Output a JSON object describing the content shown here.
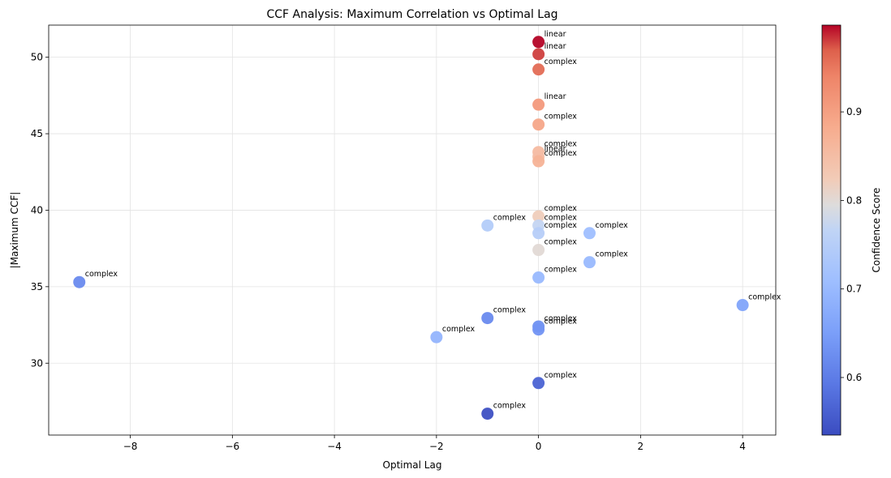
{
  "chart_data": {
    "type": "scatter",
    "title": "CCF Analysis: Maximum Correlation vs Optimal Lag",
    "xlabel": "Optimal Lag",
    "ylabel": "|Maximum CCF|",
    "xlim": [
      -9.6,
      4.65
    ],
    "ylim": [
      25.3,
      52.1
    ],
    "xticks": [
      -8,
      -6,
      -4,
      -2,
      0,
      2,
      4
    ],
    "yticks": [
      30,
      35,
      40,
      45,
      50
    ],
    "grid": true,
    "colorbar": {
      "label": "Confidence Score",
      "min": 0.535,
      "max": 0.998,
      "ticks": [
        0.6,
        0.7,
        0.8,
        0.9
      ],
      "colormap": "coolwarm"
    },
    "points": [
      {
        "x": 0,
        "y": 51.0,
        "c": 0.998,
        "label": "linear"
      },
      {
        "x": 0,
        "y": 50.2,
        "c": 0.98,
        "label": "linear"
      },
      {
        "x": 0,
        "y": 49.2,
        "c": 0.96,
        "label": "complex"
      },
      {
        "x": 0,
        "y": 46.9,
        "c": 0.91,
        "label": "linear"
      },
      {
        "x": 0,
        "y": 45.6,
        "c": 0.89,
        "label": "complex"
      },
      {
        "x": 0,
        "y": 43.8,
        "c": 0.855,
        "label": "complex"
      },
      {
        "x": 0,
        "y": 43.5,
        "c": 0.85,
        "label": "linear"
      },
      {
        "x": 0,
        "y": 43.2,
        "c": 0.87,
        "label": "complex"
      },
      {
        "x": 0,
        "y": 39.6,
        "c": 0.82,
        "label": "complex"
      },
      {
        "x": 0,
        "y": 39.0,
        "c": 0.77,
        "label": "complex"
      },
      {
        "x": 0,
        "y": 38.5,
        "c": 0.75,
        "label": "complex"
      },
      {
        "x": 0,
        "y": 37.4,
        "c": 0.8,
        "label": "complex"
      },
      {
        "x": 0,
        "y": 35.6,
        "c": 0.7,
        "label": "complex"
      },
      {
        "x": 0,
        "y": 32.4,
        "c": 0.63,
        "label": "complex"
      },
      {
        "x": 0,
        "y": 32.2,
        "c": 0.635,
        "label": "complex"
      },
      {
        "x": 0,
        "y": 28.7,
        "c": 0.565,
        "label": "complex"
      },
      {
        "x": -1,
        "y": 39.0,
        "c": 0.745,
        "label": "complex"
      },
      {
        "x": -1,
        "y": 32.95,
        "c": 0.62,
        "label": "complex"
      },
      {
        "x": -1,
        "y": 26.7,
        "c": 0.54,
        "label": "complex"
      },
      {
        "x": -2,
        "y": 31.7,
        "c": 0.69,
        "label": "complex"
      },
      {
        "x": 1,
        "y": 38.5,
        "c": 0.71,
        "label": "complex"
      },
      {
        "x": 1,
        "y": 36.6,
        "c": 0.7,
        "label": "complex"
      },
      {
        "x": -9,
        "y": 35.3,
        "c": 0.62,
        "label": "complex"
      },
      {
        "x": 4,
        "y": 33.8,
        "c": 0.66,
        "label": "complex"
      }
    ]
  }
}
